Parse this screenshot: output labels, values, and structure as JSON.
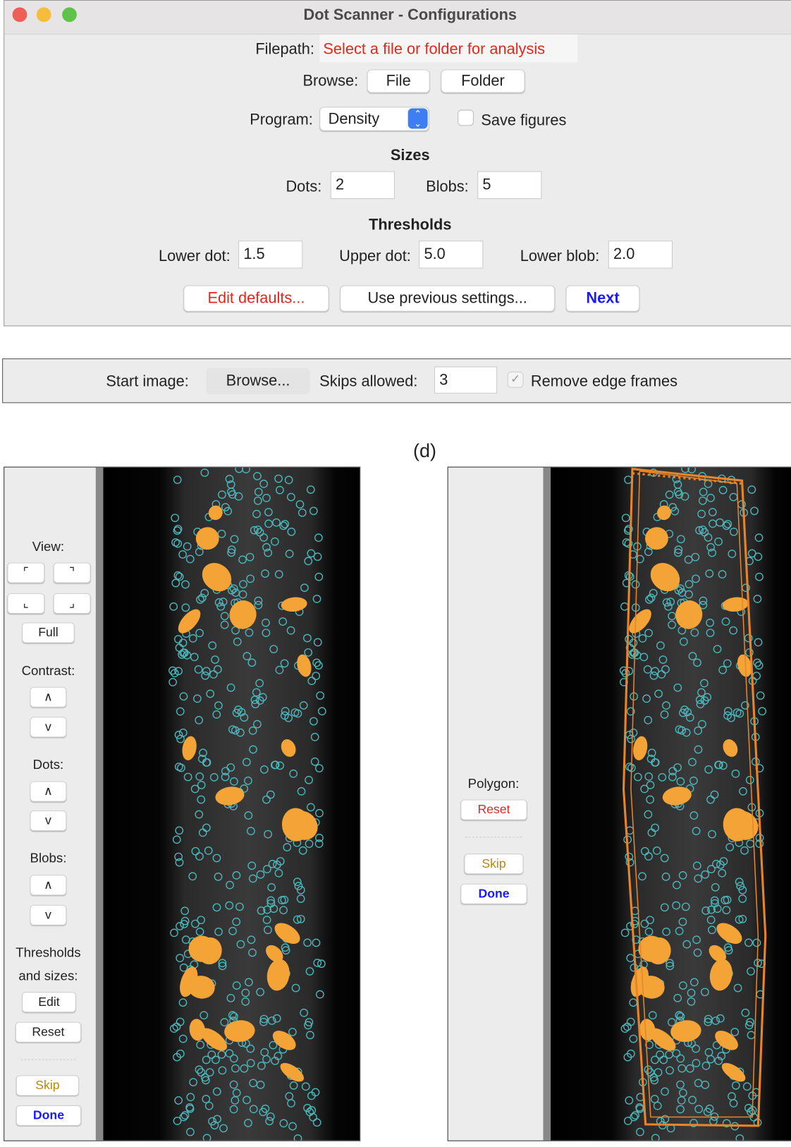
{
  "window": {
    "title": "Dot Scanner - Configurations",
    "filepath_label": "Filepath:",
    "filepath_value": "Select a file or folder for analysis",
    "browse_label": "Browse:",
    "file_button": "File",
    "folder_button": "Folder",
    "program_label": "Program:",
    "program_value": "Density",
    "save_figures": "Save figures",
    "sizes_heading": "Sizes",
    "dots_label": "Dots:",
    "dots_value": "2",
    "blobs_label": "Blobs:",
    "blobs_value": "5",
    "thresholds_heading": "Thresholds",
    "lower_dot_label": "Lower dot:",
    "lower_dot_value": "1.5",
    "upper_dot_label": "Upper dot:",
    "upper_dot_value": "5.0",
    "lower_blob_label": "Lower blob:",
    "lower_blob_value": "2.0",
    "edit_defaults": "Edit defaults...",
    "use_previous": "Use previous settings...",
    "next": "Next"
  },
  "bar": {
    "start_image_label": "Start image:",
    "browse_button": "Browse...",
    "skips_label": "Skips allowed:",
    "skips_value": "3",
    "remove_edge_frames": "Remove edge frames"
  },
  "panel_label": "(d)",
  "left_panel": {
    "view_label": "View:",
    "view_buttons": [
      "⌜",
      "⌝",
      "⌞",
      "⌟"
    ],
    "full": "Full",
    "contrast_label": "Contrast:",
    "contrast_up": "∧",
    "contrast_down": "v",
    "dots_label": "Dots:",
    "dots_up": "∧",
    "dots_down": "v",
    "blobs_label": "Blobs:",
    "blobs_up": "∧",
    "blobs_down": "v",
    "thresholds_label_1": "Thresholds",
    "thresholds_label_2": "and sizes:",
    "edit": "Edit",
    "reset": "Reset",
    "skip": "Skip",
    "done": "Done"
  },
  "right_panel": {
    "polygon_label": "Polygon:",
    "reset": "Reset",
    "skip": "Skip",
    "done": "Done"
  }
}
